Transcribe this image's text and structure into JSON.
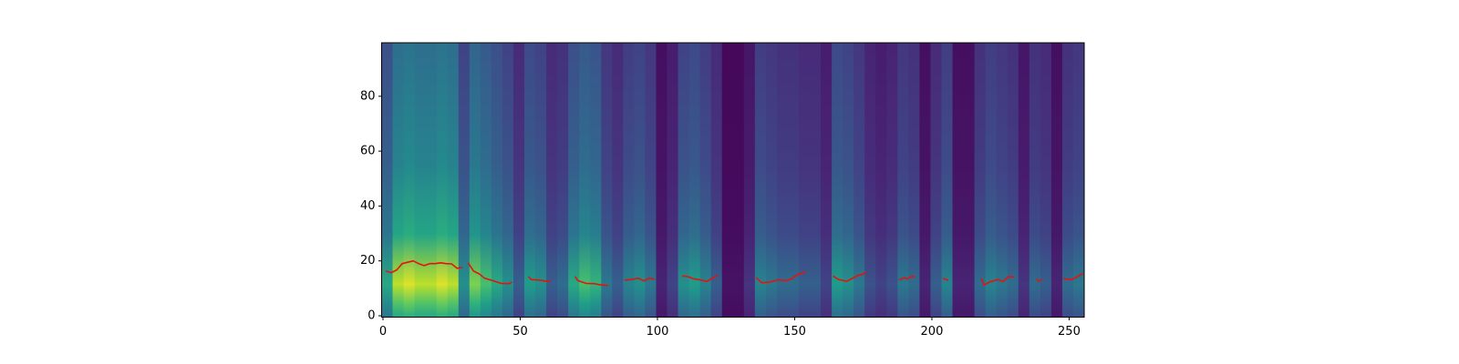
{
  "chart_data": {
    "type": "line",
    "xlim": [
      -0.5,
      255.5
    ],
    "ylim": [
      -0.5,
      99.5
    ],
    "xticks": [
      0,
      50,
      100,
      150,
      200,
      250
    ],
    "yticks": [
      0,
      20,
      40,
      60,
      80
    ],
    "heatmap_colormap": "viridis",
    "column_energy": [
      0.6,
      0.9,
      0.95,
      0.9,
      0.9,
      0.95,
      0.9,
      0.5,
      0.8,
      0.7,
      0.6,
      0.5,
      0.3,
      0.55,
      0.5,
      0.3,
      0.35,
      0.6,
      0.7,
      0.65,
      0.4,
      0.3,
      0.45,
      0.5,
      0.4,
      0.1,
      0.2,
      0.5,
      0.55,
      0.45,
      0.3,
      0.05,
      0.05,
      0.15,
      0.45,
      0.4,
      0.35,
      0.35,
      0.3,
      0.3,
      0.2,
      0.55,
      0.5,
      0.4,
      0.25,
      0.2,
      0.25,
      0.4,
      0.35,
      0.1,
      0.3,
      0.45,
      0.1,
      0.1,
      0.35,
      0.45,
      0.4,
      0.35,
      0.15,
      0.35,
      0.3,
      0.1,
      0.35,
      0.4
    ],
    "x": [
      1,
      3,
      5,
      7,
      9,
      11,
      13,
      15,
      17,
      19,
      21,
      23,
      25,
      27,
      29,
      30,
      31,
      33,
      35,
      37,
      40,
      43,
      46,
      47,
      49,
      53,
      54,
      57,
      60,
      61,
      63,
      70,
      71,
      74,
      77,
      79,
      82,
      85,
      88,
      91,
      93,
      95,
      97,
      99,
      102,
      109,
      111,
      113,
      116,
      118,
      120,
      122,
      126,
      136,
      138,
      141,
      144,
      147,
      149,
      151,
      154,
      158,
      164,
      166,
      169,
      171,
      173,
      175,
      176,
      180,
      188,
      190,
      191,
      193,
      194,
      198,
      204,
      206,
      210,
      218,
      219,
      221,
      224,
      226,
      228,
      230,
      234,
      238,
      239,
      240,
      245,
      248,
      251,
      253,
      255
    ],
    "series": [
      {
        "color": "#e8120c",
        "values": [
          16.3,
          15.7,
          16.7,
          19,
          19.5,
          20,
          19,
          18.3,
          19,
          19,
          19.3,
          19,
          18.9,
          17.3,
          17.7,
          null,
          19.3,
          16.3,
          15.3,
          13.7,
          12.8,
          11.8,
          11.7,
          12.3,
          null,
          14.3,
          13.2,
          13,
          12.5,
          12.8,
          null,
          14.3,
          12.8,
          11.8,
          11.7,
          11.3,
          11,
          null,
          13,
          13.3,
          13.7,
          12.7,
          13.7,
          13.3,
          null,
          14.5,
          14.3,
          13.5,
          13,
          12.5,
          13.7,
          14.7,
          null,
          13.9,
          12,
          12.3,
          13.1,
          12.8,
          13.5,
          15,
          15.9,
          null,
          14.5,
          13.2,
          12.6,
          13.6,
          14.7,
          15.2,
          16,
          null,
          13,
          13.9,
          13.4,
          14.5,
          14,
          null,
          13.7,
          12.9,
          null,
          13.6,
          11.2,
          12.3,
          13.2,
          12.5,
          14.3,
          14.1,
          null,
          13.3,
          12.6,
          13.3,
          null,
          13.5,
          13.2,
          14.3,
          15.5
        ]
      }
    ]
  }
}
